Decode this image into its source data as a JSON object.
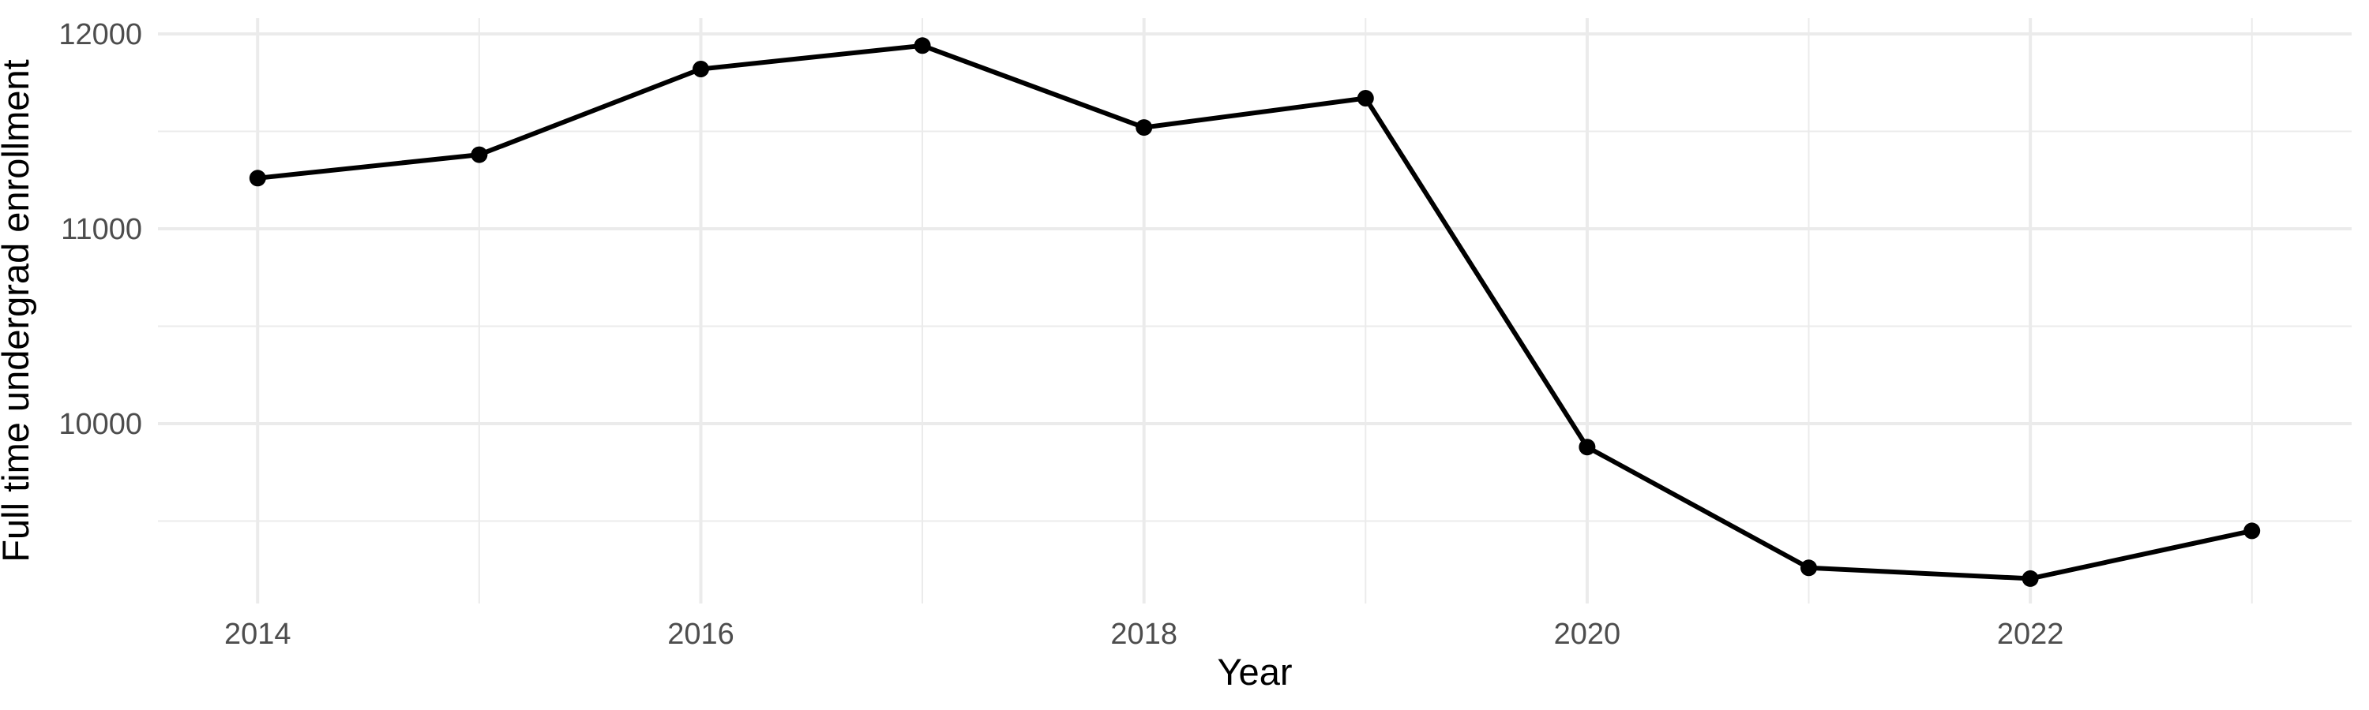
{
  "chart_data": {
    "type": "line",
    "title": "",
    "xlabel": "Year",
    "ylabel": "Full time undergrad enrollment",
    "x": [
      2014,
      2015,
      2016,
      2017,
      2018,
      2019,
      2020,
      2021,
      2022,
      2023
    ],
    "values": [
      11260,
      11380,
      11820,
      11940,
      11520,
      11670,
      9880,
      9260,
      9205,
      9450
    ],
    "series_name": "Full time undergrad enrollment",
    "xlim": [
      2013.55,
      2023.45
    ],
    "ylim": [
      9077,
      12081
    ],
    "x_major_gridlines": [
      2014,
      2016,
      2018,
      2020,
      2022
    ],
    "x_minor_gridlines": [
      2015,
      2017,
      2019,
      2021,
      2023
    ],
    "y_major_gridlines": [
      12000,
      11000,
      10000
    ],
    "y_minor_gridlines": [
      11500,
      10500,
      9500
    ],
    "x_tick_labels": [
      "2014",
      "2016",
      "2018",
      "2020",
      "2022"
    ],
    "y_tick_labels": [
      "12000",
      "11000",
      "10000"
    ],
    "grid": true,
    "legend": "none",
    "marker": "filled-circle",
    "style": {
      "line_color": "#000000",
      "point_color": "#000000",
      "grid_color": "#EBEBEB",
      "tick_label_color": "#4D4D4D",
      "axis_title_color": "#000000",
      "background": "#FFFFFF"
    }
  }
}
